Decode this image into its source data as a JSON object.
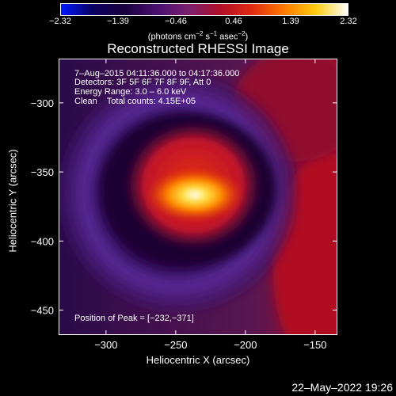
{
  "colorbar": {
    "ticks": [
      "−2.32",
      "−1.39",
      "−0.46",
      "0.46",
      "1.39",
      "2.32"
    ],
    "units_text": "(photons cm",
    "units_sup1": "−2",
    "units_mid": " s",
    "units_sup2": "−1",
    "units_end": " asec",
    "units_sup3": "−2",
    "units_close": ")",
    "gradient_stops": [
      "#0018ff",
      "#0a0060",
      "#1a0040",
      "#4a1070",
      "#7a1f70",
      "#b2102a",
      "#e02a10",
      "#ff7a00",
      "#ffcc10",
      "#ffffff"
    ]
  },
  "title": "Reconstructed RHESSI Image",
  "info": {
    "time_range": "7–Aug–2015 04:11:36.000 to 04:17:36.000",
    "detectors": "Detectors: 3F 5F 6F 7F 8F 9F, Att 0",
    "energy": "Energy Range: 3.0 – 6.0 keV",
    "clean": "Clean    Total counts: 4.15E+05",
    "peak": "Position of Peak = [−232,−371]"
  },
  "footer": {
    "timestamp": "22–May–2022 19:26"
  },
  "chart_data": {
    "type": "heatmap",
    "title": "Reconstructed RHESSI Image",
    "xlabel": "Heliocentric X (arcsec)",
    "ylabel": "Heliocentric Y (arcsec)",
    "xlim": [
      -334,
      -134
    ],
    "ylim": [
      -468,
      -268
    ],
    "x_ticks": [
      -300,
      -250,
      -200,
      -150
    ],
    "x_tick_labels": [
      "−300",
      "−250",
      "−200",
      "−150"
    ],
    "y_ticks": [
      -300,
      -350,
      -400,
      -450
    ],
    "y_tick_labels": [
      "−300",
      "−350",
      "−400",
      "−450"
    ],
    "colorbar_range": [
      -2.32,
      2.32
    ],
    "peak_position": [
      -232,
      -371
    ],
    "grid": false
  }
}
